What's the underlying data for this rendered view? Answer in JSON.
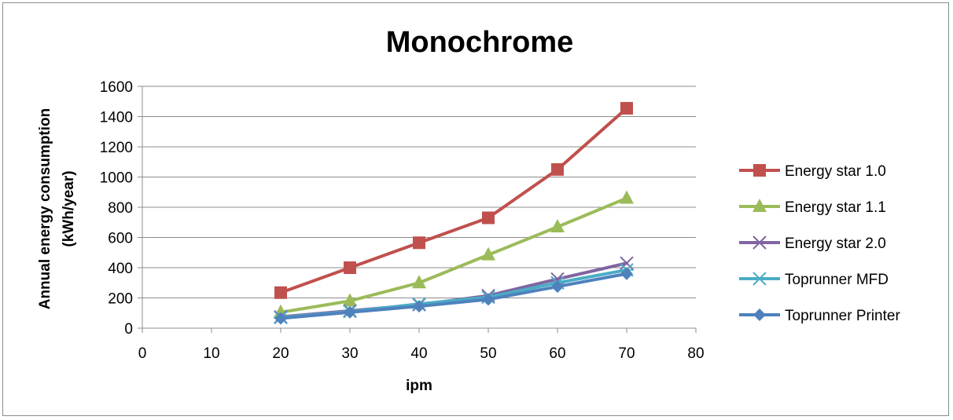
{
  "chart_data": {
    "type": "line",
    "title": "Monochrome",
    "xlabel": "ipm",
    "ylabel": [
      "Annual energy consumption",
      "(kWh/year)"
    ],
    "xlim": [
      0,
      80
    ],
    "ylim": [
      0,
      1600
    ],
    "xticks": [
      0,
      10,
      20,
      30,
      40,
      50,
      60,
      70,
      80
    ],
    "yticks": [
      0,
      200,
      400,
      600,
      800,
      1000,
      1200,
      1400,
      1600
    ],
    "grid": "horizontal",
    "legend_position": "right",
    "series": [
      {
        "name": "Energy star 1.0",
        "color": "#c0504d",
        "marker": "square",
        "x": [
          20,
          30,
          40,
          50,
          60,
          70
        ],
        "y": [
          235,
          400,
          565,
          730,
          1050,
          1455
        ]
      },
      {
        "name": "Energy star 1.1",
        "color": "#9bbb59",
        "marker": "triangle",
        "x": [
          20,
          30,
          40,
          50,
          60,
          70
        ],
        "y": [
          105,
          180,
          300,
          485,
          670,
          860
        ]
      },
      {
        "name": "Energy star 2.0",
        "color": "#8064a2",
        "marker": "x",
        "x": [
          20,
          30,
          40,
          50,
          60,
          70
        ],
        "y": [
          75,
          115,
          155,
          215,
          325,
          430
        ]
      },
      {
        "name": "Toprunner MFD",
        "color": "#4bacc6",
        "marker": "star",
        "x": [
          20,
          30,
          40,
          50,
          60,
          70
        ],
        "y": [
          70,
          110,
          160,
          205,
          300,
          385
        ]
      },
      {
        "name": "Toprunner Printer",
        "color": "#4f81bd",
        "marker": "diamond",
        "x": [
          20,
          30,
          40,
          50,
          60,
          70
        ],
        "y": [
          65,
          105,
          145,
          190,
          275,
          360
        ]
      }
    ]
  }
}
